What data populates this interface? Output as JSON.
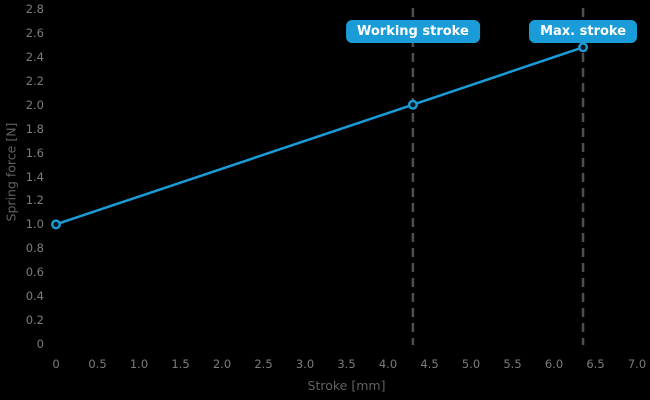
{
  "chart_data": {
    "type": "line",
    "title": "",
    "xlabel": "Stroke [mm]",
    "ylabel": "Spring force [N]",
    "xlim": [
      0,
      7.0
    ],
    "ylim": [
      0,
      2.8
    ],
    "grid": false,
    "legend": "none",
    "x_ticks": [
      "0",
      "0.5",
      "1.0",
      "1.5",
      "2.0",
      "2.5",
      "3.0",
      "3.5",
      "4.0",
      "4.5",
      "5.0",
      "5.5",
      "6.0",
      "6.5",
      "7.0"
    ],
    "y_ticks": [
      "0",
      "0.2",
      "0.4",
      "0.6",
      "0.8",
      "1.0",
      "1.2",
      "1.4",
      "1.6",
      "1.8",
      "2.0",
      "2.2",
      "2.4",
      "2.6",
      "2.8"
    ],
    "series": [
      {
        "name": "Spring force",
        "x": [
          0,
          4.3,
          6.35
        ],
        "y": [
          1.0,
          2.0,
          2.48
        ],
        "marker": "open-circle"
      }
    ],
    "annotations": [
      {
        "label": "Working stroke",
        "x": 4.3
      },
      {
        "label": "Max. stroke",
        "x": 6.35
      }
    ],
    "colors": {
      "background": "#000000",
      "line": "#199cd8",
      "marker_fill": "#0b1a22",
      "annotation_bg": "#199cd8",
      "annotation_text": "#ffffff",
      "dashed_line": "#4f4f4f",
      "tick_label": "#7c7c7c",
      "axis_title": "#616161"
    }
  }
}
